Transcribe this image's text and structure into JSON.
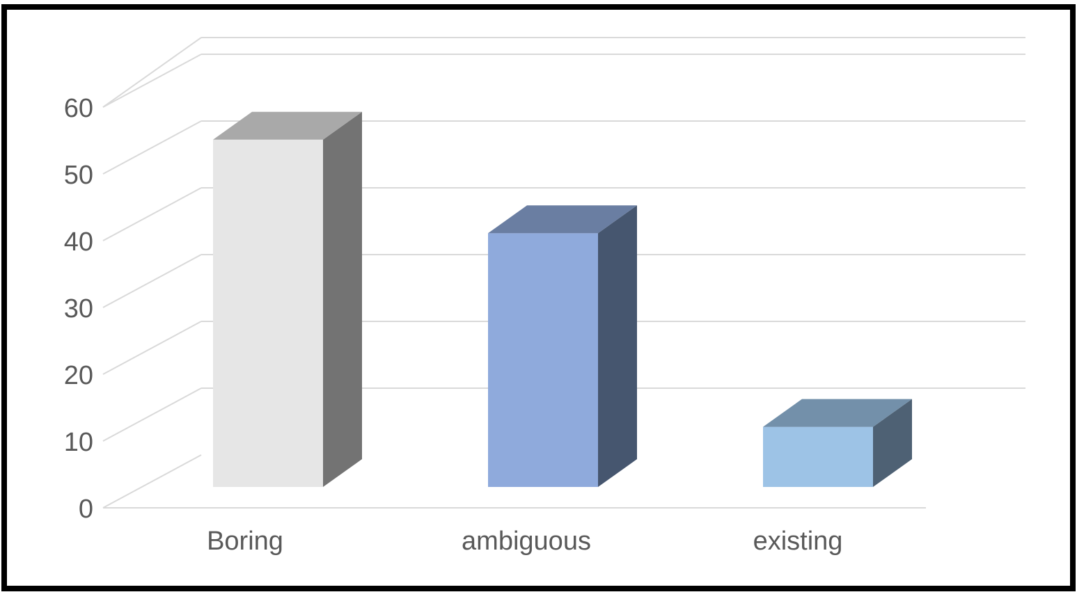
{
  "chart_data": {
    "type": "bar",
    "style": "3d-column",
    "categories": [
      "Boring",
      "ambiguous",
      "existing"
    ],
    "values": [
      52,
      38,
      9
    ],
    "bar_colors": [
      {
        "front": "#e6e6e6",
        "side": "#737373",
        "top": "#a9a9a9"
      },
      {
        "front": "#8faadc",
        "side": "#46566f",
        "top": "#6a7ea2"
      },
      {
        "front": "#9dc3e6",
        "side": "#4e6174",
        "top": "#7390aa"
      }
    ],
    "y_ticks": [
      0,
      10,
      20,
      30,
      40,
      50,
      60
    ],
    "ylim": [
      0,
      60
    ],
    "grid": true,
    "legend": "none",
    "title": "",
    "xlabel": "",
    "ylabel": "",
    "grid_color": "#d9d9d9",
    "border_color": "#000000"
  }
}
